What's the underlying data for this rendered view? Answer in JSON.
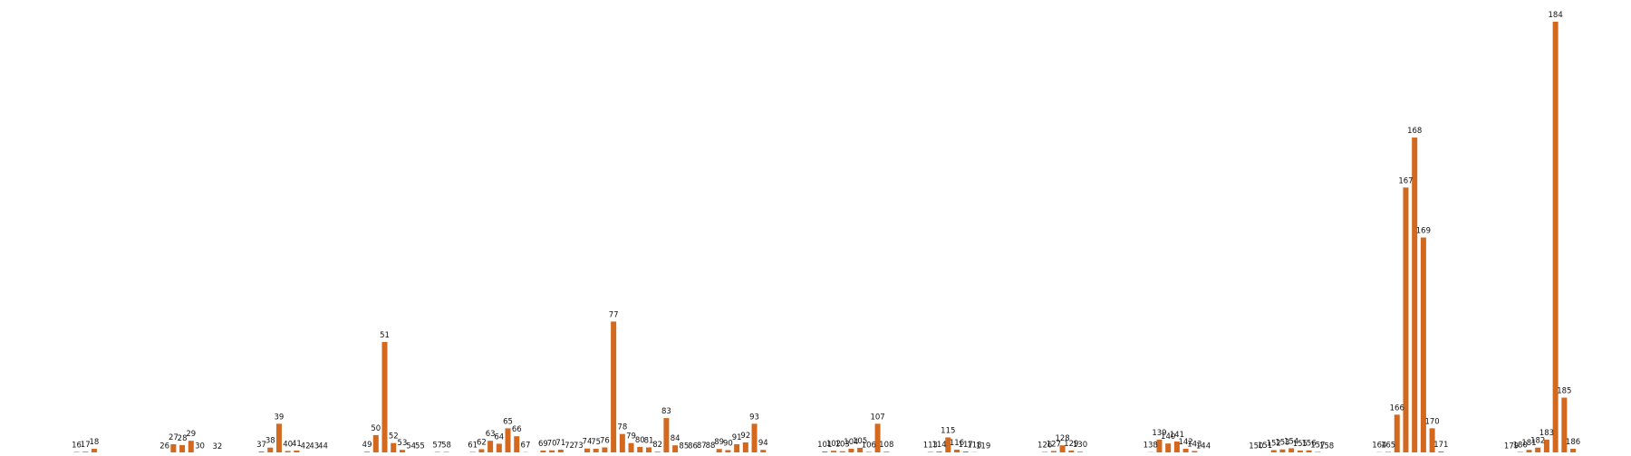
{
  "chart_data": {
    "type": "bar",
    "title": "",
    "xlabel": "",
    "ylabel": "",
    "ylim": [
      0,
      190
    ],
    "grid": false,
    "bar_color": "#d2691e",
    "background": "#ffffff",
    "x": [
      16,
      17,
      18,
      26,
      27,
      28,
      29,
      30,
      32,
      37,
      38,
      39,
      40,
      41,
      42,
      43,
      44,
      49,
      50,
      51,
      52,
      53,
      54,
      55,
      57,
      58,
      61,
      62,
      63,
      64,
      65,
      66,
      67,
      69,
      70,
      71,
      72,
      73,
      74,
      75,
      76,
      77,
      78,
      79,
      80,
      81,
      82,
      83,
      84,
      85,
      86,
      87,
      88,
      89,
      90,
      91,
      92,
      93,
      94,
      101,
      102,
      103,
      104,
      105,
      106,
      107,
      108,
      113,
      114,
      115,
      116,
      117,
      118,
      119,
      126,
      127,
      128,
      129,
      130,
      138,
      139,
      140,
      141,
      142,
      143,
      144,
      150,
      151,
      152,
      153,
      154,
      155,
      156,
      157,
      158,
      164,
      165,
      166,
      167,
      168,
      169,
      170,
      171,
      179,
      180,
      181,
      182,
      183,
      184,
      185,
      186
    ],
    "values": [
      0.6,
      0.7,
      2,
      0.2,
      4,
      3.6,
      5.5,
      0.3,
      0.1,
      0.8,
      2.5,
      13,
      1,
      1.2,
      0.3,
      0.2,
      0.3,
      0.7,
      8,
      49,
      4.5,
      1.5,
      0.3,
      0.2,
      0.6,
      0.6,
      0.6,
      1.8,
      5.5,
      4.2,
      11,
      7.5,
      0.5,
      1.2,
      1.3,
      1.6,
      0.4,
      0.4,
      2.1,
      2,
      2.6,
      58,
      8.5,
      4.5,
      2.8,
      2.6,
      0.7,
      15.5,
      3.5,
      0.2,
      0.2,
      0.4,
      0.4,
      1.9,
      1.4,
      4,
      4.8,
      13,
      1.5,
      0.8,
      1.1,
      0.9,
      2,
      2.4,
      0.6,
      13,
      0.7,
      0.6,
      0.8,
      7,
      1.6,
      0.8,
      0.5,
      0.3,
      0.6,
      1,
      3.5,
      1.2,
      0.7,
      0.5,
      6,
      4.3,
      5.2,
      2,
      1,
      0.2,
      0.3,
      0.4,
      1.4,
      1.7,
      2.2,
      1.2,
      1.3,
      0.6,
      0.2,
      0.5,
      0.6,
      17,
      117,
      139,
      95,
      11,
      0.8,
      0.2,
      0.6,
      1.5,
      2.5,
      6,
      190,
      24.5,
      2
    ]
  }
}
